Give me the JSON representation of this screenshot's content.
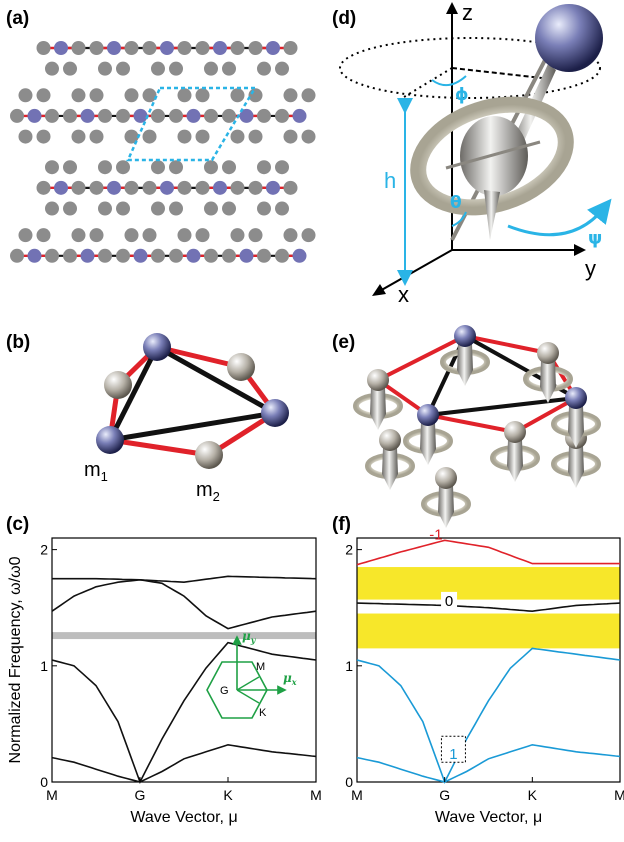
{
  "panels": {
    "a": "(a)",
    "b": "(b)",
    "c": "(c)",
    "d": "(d)",
    "e": "(e)",
    "f": "(f)"
  },
  "labels": {
    "m1": "m",
    "m1_sub": "1",
    "m2": "m",
    "m2_sub": "2",
    "axis_z": "z",
    "axis_y": "y",
    "axis_x": "x",
    "h": "h",
    "phi": "ϕ",
    "theta": "θ",
    "psi": "ψ",
    "mu_y": "μ",
    "mu_y_sub": "y",
    "mu_x": "μ",
    "mu_x_sub": "x",
    "bz_M": "M",
    "bz_G": "G",
    "bz_K": "K"
  },
  "colors": {
    "red_bond": "#e0222a",
    "black_bond": "#111111",
    "blue_site": "#7272b4",
    "gray_site": "#8c8c8c",
    "unit_cell": "#2ab4e6",
    "band_blue": "#1a9ad6",
    "band_red": "#e0222a",
    "gap_gray": "#bdbdbd",
    "gap_yellow": "#f7e72a",
    "inset_green": "#1fa045"
  },
  "chart_data": [
    {
      "type": "line",
      "panel": "(c)",
      "categories": [
        "M",
        "G",
        "K",
        "M"
      ],
      "xlabel": "Wave Vector, μ",
      "ylabel": "Normalized Frequency, ω/ω0",
      "ylim": [
        0,
        2.1
      ],
      "yticks": [
        "0",
        "1",
        "2"
      ],
      "bandgap": [
        1.23,
        1.29
      ],
      "series": [
        {
          "x": [
            0,
            0.25,
            0.5,
            0.75,
            1,
            1.25,
            1.5,
            2,
            2.5,
            3
          ],
          "values": [
            0.21,
            0.17,
            0.11,
            0.05,
            0.0,
            0.09,
            0.2,
            0.32,
            0.26,
            0.22
          ]
        },
        {
          "x": [
            0,
            0.25,
            0.5,
            0.75,
            1,
            1.25,
            1.5,
            1.75,
            2,
            2.5,
            3
          ],
          "values": [
            1.05,
            1.0,
            0.83,
            0.52,
            0.0,
            0.37,
            0.7,
            0.98,
            1.2,
            1.1,
            1.05
          ]
        },
        {
          "x": [
            0,
            0.25,
            0.5,
            0.75,
            1,
            1.25,
            1.5,
            1.75,
            2,
            2.5,
            3
          ],
          "values": [
            1.47,
            1.6,
            1.68,
            1.72,
            1.74,
            1.71,
            1.6,
            1.43,
            1.32,
            1.42,
            1.47
          ]
        },
        {
          "x": [
            0,
            0.5,
            1,
            1.5,
            2,
            2.5,
            3
          ],
          "values": [
            1.75,
            1.75,
            1.74,
            1.72,
            1.77,
            1.76,
            1.75
          ]
        }
      ]
    },
    {
      "type": "line",
      "panel": "(f)",
      "categories": [
        "M",
        "G",
        "K",
        "M"
      ],
      "xlabel": "Wave Vector, μ",
      "ylim": [
        0,
        2.1
      ],
      "yticks": [
        "0",
        "1",
        "2"
      ],
      "bandgaps": [
        [
          1.15,
          1.45
        ],
        [
          1.57,
          1.85
        ]
      ],
      "band_labels": [
        "-1",
        "0",
        "1"
      ],
      "series": [
        {
          "name": "1",
          "x": [
            0,
            0.25,
            0.5,
            0.75,
            1,
            1.25,
            1.5,
            2,
            2.5,
            3
          ],
          "values": [
            0.21,
            0.17,
            0.11,
            0.05,
            0.0,
            0.09,
            0.2,
            0.32,
            0.26,
            0.22
          ]
        },
        {
          "name": "1",
          "x": [
            0,
            0.25,
            0.5,
            0.75,
            1,
            1.25,
            1.5,
            1.75,
            2,
            2.5,
            3
          ],
          "values": [
            1.05,
            1.0,
            0.83,
            0.52,
            0.0,
            0.37,
            0.7,
            0.98,
            1.15,
            1.1,
            1.05
          ]
        },
        {
          "name": "0",
          "x": [
            0,
            0.5,
            1,
            1.5,
            2,
            2.5,
            3
          ],
          "values": [
            1.54,
            1.53,
            1.52,
            1.5,
            1.47,
            1.52,
            1.54
          ]
        },
        {
          "name": "-1",
          "x": [
            0,
            0.5,
            1,
            1.5,
            2,
            2.5,
            3
          ],
          "values": [
            1.87,
            1.98,
            2.08,
            2.02,
            1.88,
            1.88,
            1.88
          ]
        }
      ]
    }
  ]
}
